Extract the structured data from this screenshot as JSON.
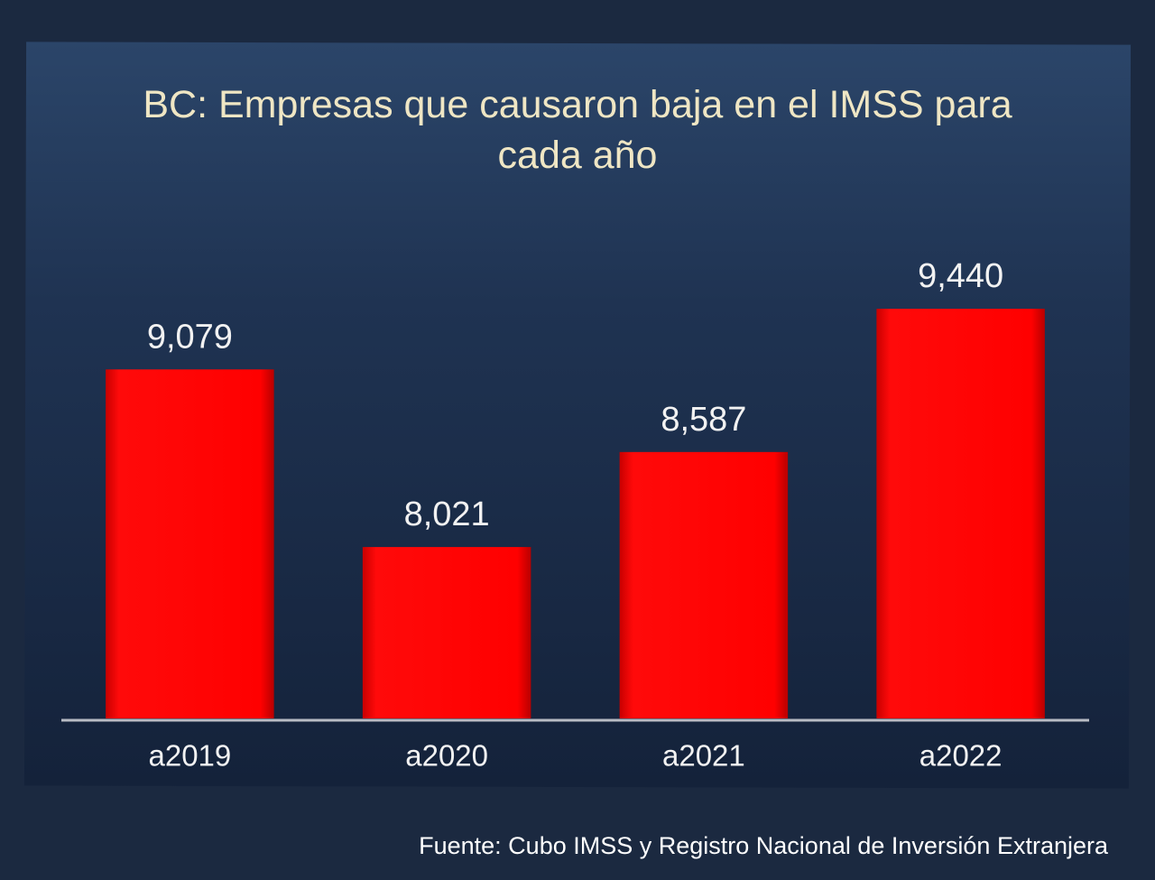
{
  "chart_data": {
    "type": "bar",
    "title": "BC: Empresas que causaron baja en el IMSS para cada año",
    "categories": [
      "a2019",
      "a2020",
      "a2021",
      "a2022"
    ],
    "values": [
      9079,
      8021,
      8587,
      9440
    ],
    "value_labels": [
      "9,079",
      "8,021",
      "8,587",
      "9,440"
    ],
    "color": "#ff0000",
    "ylim": [
      7000,
      9500
    ],
    "source": "Fuente: Cubo IMSS y Registro Nacional de Inversión Extranjera"
  }
}
